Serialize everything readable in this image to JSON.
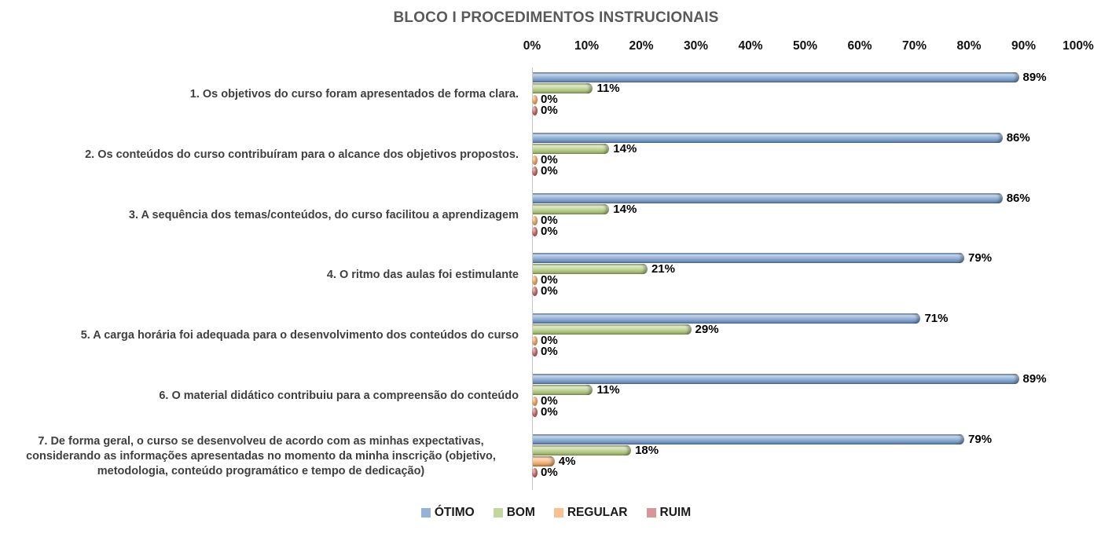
{
  "title": "BLOCO I PROCEDIMENTOS INSTRUCIONAIS",
  "chart_data": {
    "type": "bar",
    "orientation": "horizontal",
    "title": "BLOCO I PROCEDIMENTOS INSTRUCIONAIS",
    "xlim": [
      0,
      100
    ],
    "axis_ticks": [
      "0%",
      "10%",
      "20%",
      "30%",
      "40%",
      "50%",
      "60%",
      "70%",
      "80%",
      "90%",
      "100%"
    ],
    "grid": false,
    "legend_position": "bottom",
    "value_label_suffix": "%",
    "categories": [
      "1. Os objetivos do curso foram apresentados de forma clara.",
      "2. Os conteúdos do curso contribuíram para o alcance dos objetivos propostos.",
      "3. A sequência dos temas/conteúdos, do curso facilitou a aprendizagem",
      "4. O ritmo das aulas foi estimulante",
      "5. A carga horária foi adequada para o desenvolvimento dos conteúdos do curso",
      "6. O material didático contribuiu para a compreensão do conteúdo",
      "7. De forma geral, o curso se desenvolveu de acordo com as minhas expectativas, considerando as informações apresentadas no momento da minha inscrição (objetivo, metodologia, conteúdo programático e tempo de dedicação)"
    ],
    "series": [
      {
        "name": "ÓTIMO",
        "values": [
          89,
          86,
          86,
          79,
          71,
          89,
          79
        ],
        "color": "#95B3D7",
        "light": "#C8D8EB",
        "dark": "#6787B4",
        "edge": "#46648E"
      },
      {
        "name": "BOM",
        "values": [
          11,
          14,
          14,
          21,
          29,
          11,
          18
        ],
        "color": "#C3D69B",
        "light": "#E3ECD0",
        "dark": "#9AB167",
        "edge": "#758E45"
      },
      {
        "name": "REGULAR",
        "values": [
          0,
          0,
          0,
          0,
          0,
          0,
          4
        ],
        "color": "#FAC090",
        "light": "#FDE0C4",
        "dark": "#D18F55",
        "edge": "#A96A33"
      },
      {
        "name": "RUIM",
        "values": [
          0,
          0,
          0,
          0,
          0,
          0,
          0
        ],
        "color": "#D99694",
        "light": "#EBC6C5",
        "dark": "#A95B59",
        "edge": "#823432"
      }
    ]
  }
}
